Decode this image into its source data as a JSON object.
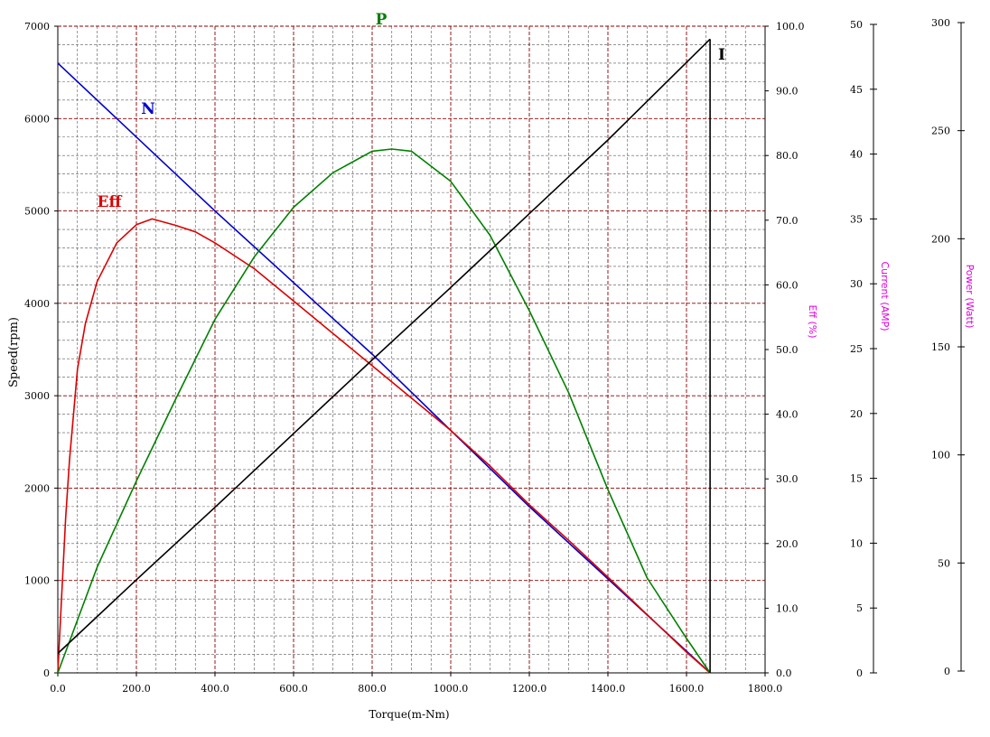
{
  "chart_data": {
    "type": "line",
    "xlabel": "Torque(m-Nm)",
    "ylabel": "Speed(rpm)",
    "xlim": [
      0,
      1800
    ],
    "x_ticks": [
      "0.0",
      "200.0",
      "400.0",
      "600.0",
      "800.0",
      "1000.0",
      "1200.0",
      "1400.0",
      "1600.0",
      "1800.0"
    ],
    "grid": true,
    "axes": {
      "speed": {
        "title": "Speed(rpm)",
        "lim": [
          0,
          7000
        ],
        "ticks": [
          "0",
          "1000",
          "2000",
          "3000",
          "4000",
          "5000",
          "6000",
          "7000"
        ]
      },
      "eff": {
        "title": "Eff (%)",
        "lim": [
          0,
          100
        ],
        "ticks": [
          "0.0",
          "10.0",
          "20.0",
          "30.0",
          "40.0",
          "50.0",
          "60.0",
          "70.0",
          "80.0",
          "90.0",
          "100.0"
        ]
      },
      "current": {
        "title": "Current (AMP)",
        "lim": [
          0,
          50
        ],
        "ticks": [
          "0",
          "5",
          "10",
          "15",
          "20",
          "25",
          "30",
          "35",
          "40",
          "45",
          "50"
        ]
      },
      "power": {
        "title": "Power (Watt)",
        "lim": [
          0,
          300
        ],
        "ticks": [
          "0",
          "50",
          "100",
          "150",
          "200",
          "250",
          "300"
        ]
      }
    },
    "series": [
      {
        "name": "N",
        "axis": "speed",
        "color": "#0000cc",
        "x": [
          0,
          400,
          800,
          1200,
          1660
        ],
        "y": [
          6600,
          5000,
          3450,
          1800,
          0
        ]
      },
      {
        "name": "Eff",
        "axis": "eff",
        "color": "#dd0000",
        "x": [
          0,
          10,
          20,
          30,
          50,
          70,
          100,
          150,
          200,
          240,
          300,
          350,
          400,
          500,
          600,
          700,
          800,
          900,
          1000,
          1100,
          1200,
          1300,
          1400,
          1500,
          1600,
          1660
        ],
        "y": [
          0,
          12,
          24,
          33,
          47,
          54,
          60.5,
          66.5,
          69.3,
          70.2,
          69.2,
          68.2,
          66.5,
          62.5,
          57.5,
          52.5,
          47.5,
          42.5,
          37.5,
          32,
          26,
          20.5,
          14.8,
          9,
          3.2,
          0
        ]
      },
      {
        "name": "P",
        "axis": "power",
        "color": "#008000",
        "x": [
          0,
          100,
          200,
          300,
          400,
          500,
          600,
          700,
          800,
          850,
          900,
          1000,
          1100,
          1200,
          1300,
          1400,
          1500,
          1600,
          1660
        ],
        "y": [
          0,
          49,
          89,
          127,
          164,
          193,
          216,
          232,
          242,
          243,
          242,
          228,
          203,
          168,
          130,
          85,
          44,
          16,
          0
        ]
      },
      {
        "name": "I",
        "axis": "current",
        "color": "#000000",
        "x": [
          0,
          200,
          400,
          600,
          800,
          1000,
          1200,
          1400,
          1660
        ],
        "y": [
          1.5,
          7.2,
          12.8,
          18.5,
          24.2,
          29.8,
          35.5,
          41.2,
          49
        ]
      }
    ]
  }
}
